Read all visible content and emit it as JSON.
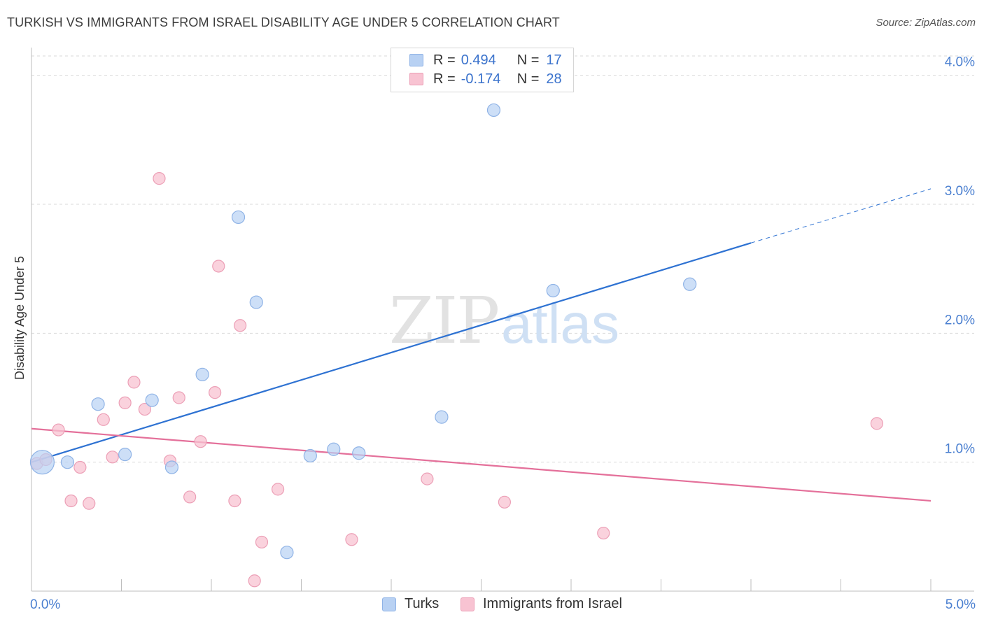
{
  "header": {
    "title": "TURKISH VS IMMIGRANTS FROM ISRAEL DISABILITY AGE UNDER 5 CORRELATION CHART",
    "source": "Source: ZipAtlas.com"
  },
  "watermark": {
    "part1": "ZIP",
    "part2": "atlas"
  },
  "stats": {
    "turks": {
      "r_label": "R =",
      "r_value": "0.494",
      "n_label": "N =",
      "n_value": "17"
    },
    "israel": {
      "r_label": "R =",
      "r_value": "-0.174",
      "n_label": "N =",
      "n_value": "28"
    }
  },
  "legend": {
    "turks": "Turks",
    "israel": "Immigrants from Israel"
  },
  "colors": {
    "turks_fill": "#b8d1f3",
    "turks_stroke": "#8fb3e6",
    "turks_line": "#2e72d2",
    "israel_fill": "#f8c3d2",
    "israel_stroke": "#ec9fb6",
    "israel_line": "#e4709a",
    "tick_text": "#4a7fd0",
    "grid": "#d9d9d9"
  },
  "chart_data": {
    "type": "scatter",
    "title": "TURKISH VS IMMIGRANTS FROM ISRAEL DISABILITY AGE UNDER 5 CORRELATION CHART",
    "xlabel": "",
    "ylabel": "Disability Age Under 5",
    "xlim": [
      0,
      5
    ],
    "ylim": [
      0,
      4.15
    ],
    "x_tick_labels": [
      "0.0%",
      "5.0%"
    ],
    "y_ticks": [
      1,
      2,
      3,
      4
    ],
    "y_tick_labels": [
      "1.0%",
      "2.0%",
      "3.0%",
      "4.0%"
    ],
    "grid": true,
    "legend_position": "bottom",
    "series": [
      {
        "name": "Turks",
        "r": 0.494,
        "n": 17,
        "points": [
          {
            "x": 0.06,
            "y": 1.0,
            "size": "large"
          },
          {
            "x": 0.2,
            "y": 1.0
          },
          {
            "x": 0.37,
            "y": 1.45
          },
          {
            "x": 0.52,
            "y": 1.06
          },
          {
            "x": 0.67,
            "y": 1.48
          },
          {
            "x": 0.78,
            "y": 0.96
          },
          {
            "x": 0.95,
            "y": 1.68
          },
          {
            "x": 1.15,
            "y": 2.9
          },
          {
            "x": 1.25,
            "y": 2.24
          },
          {
            "x": 1.42,
            "y": 0.3
          },
          {
            "x": 1.55,
            "y": 1.05
          },
          {
            "x": 1.68,
            "y": 1.1
          },
          {
            "x": 1.82,
            "y": 1.07
          },
          {
            "x": 2.28,
            "y": 1.35
          },
          {
            "x": 2.57,
            "y": 3.73
          },
          {
            "x": 2.9,
            "y": 2.33
          },
          {
            "x": 3.66,
            "y": 2.38
          }
        ],
        "trendline": {
          "x": [
            0.0,
            4.0
          ],
          "y": [
            1.0,
            2.7
          ],
          "dashed_extension": {
            "x": [
              4.0,
              5.0
            ],
            "y": [
              2.7,
              3.12
            ]
          }
        }
      },
      {
        "name": "Immigrants from Israel",
        "r": -0.174,
        "n": 28,
        "points": [
          {
            "x": 0.03,
            "y": 0.99
          },
          {
            "x": 0.08,
            "y": 1.02
          },
          {
            "x": 0.15,
            "y": 1.25
          },
          {
            "x": 0.22,
            "y": 0.7
          },
          {
            "x": 0.27,
            "y": 0.96
          },
          {
            "x": 0.32,
            "y": 0.68
          },
          {
            "x": 0.4,
            "y": 1.33
          },
          {
            "x": 0.45,
            "y": 1.04
          },
          {
            "x": 0.52,
            "y": 1.46
          },
          {
            "x": 0.57,
            "y": 1.62
          },
          {
            "x": 0.63,
            "y": 1.41
          },
          {
            "x": 0.71,
            "y": 3.2
          },
          {
            "x": 0.77,
            "y": 1.01
          },
          {
            "x": 0.82,
            "y": 1.5
          },
          {
            "x": 0.88,
            "y": 0.73
          },
          {
            "x": 0.94,
            "y": 1.16
          },
          {
            "x": 1.02,
            "y": 1.54
          },
          {
            "x": 1.04,
            "y": 2.52
          },
          {
            "x": 1.13,
            "y": 0.7
          },
          {
            "x": 1.16,
            "y": 2.06
          },
          {
            "x": 1.24,
            "y": 0.08
          },
          {
            "x": 1.28,
            "y": 0.38
          },
          {
            "x": 1.37,
            "y": 0.79
          },
          {
            "x": 1.78,
            "y": 0.4
          },
          {
            "x": 2.2,
            "y": 0.87
          },
          {
            "x": 2.63,
            "y": 0.69
          },
          {
            "x": 3.18,
            "y": 0.45
          },
          {
            "x": 4.7,
            "y": 1.3
          }
        ],
        "trendline": {
          "x": [
            0.0,
            5.0
          ],
          "y": [
            1.26,
            0.7
          ]
        }
      }
    ]
  }
}
